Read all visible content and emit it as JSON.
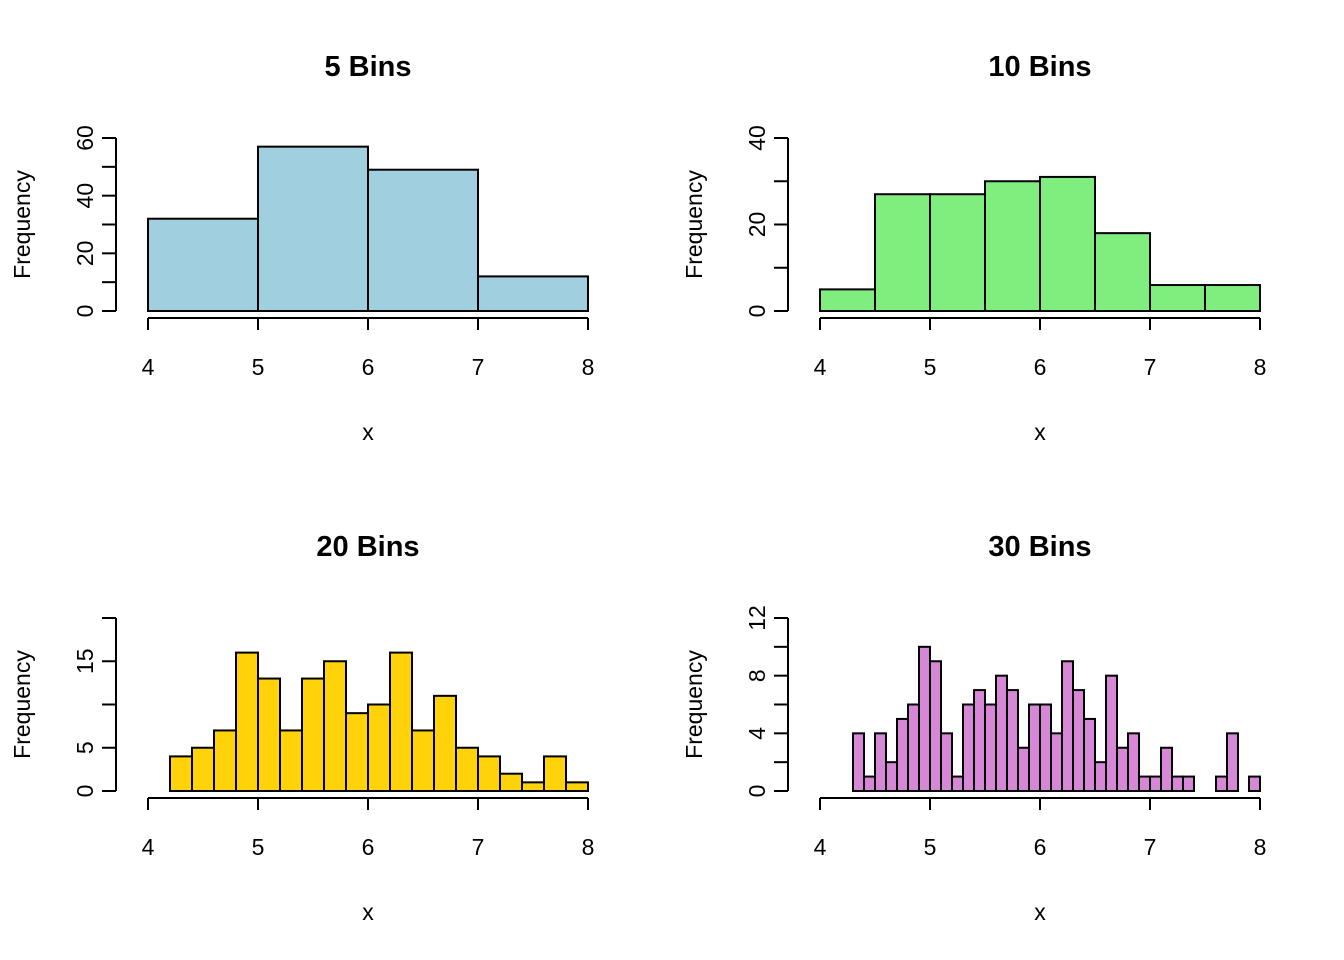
{
  "chart_data": [
    {
      "type": "bar",
      "title": "5 Bins",
      "xlabel": "x",
      "ylabel": "Frequency",
      "color": "#A0CFE0",
      "xlim": [
        4,
        8
      ],
      "ylim": [
        0,
        60
      ],
      "x_ticks": [
        4,
        5,
        6,
        7,
        8
      ],
      "y_ticks": [
        0,
        20,
        40,
        60
      ],
      "y_minor_ticks": [
        10,
        30,
        50
      ],
      "bin_start": 4.0,
      "bin_width": 1.0,
      "values": [
        32,
        57,
        49,
        12
      ]
    },
    {
      "type": "bar",
      "title": "10 Bins",
      "xlabel": "x",
      "ylabel": "Frequency",
      "color": "#80EE7E",
      "xlim": [
        4,
        8
      ],
      "ylim": [
        0,
        40
      ],
      "x_ticks": [
        4,
        5,
        6,
        7,
        8
      ],
      "y_ticks": [
        0,
        20,
        40
      ],
      "y_minor_ticks": [
        10,
        30
      ],
      "bin_start": 4.0,
      "bin_width": 0.5,
      "values": [
        5,
        27,
        27,
        30,
        31,
        18,
        6,
        6
      ]
    },
    {
      "type": "bar",
      "title": "20 Bins",
      "xlabel": "x",
      "ylabel": "Frequency",
      "color": "#FFD20A",
      "xlim": [
        4,
        8
      ],
      "ylim": [
        0,
        20
      ],
      "x_ticks": [
        4,
        5,
        6,
        7,
        8
      ],
      "y_ticks": [
        0,
        5,
        15
      ],
      "y_minor_ticks": [
        10,
        20
      ],
      "bin_start": 4.2,
      "bin_width": 0.2,
      "values": [
        4,
        5,
        7,
        16,
        13,
        7,
        13,
        15,
        9,
        10,
        16,
        7,
        11,
        5,
        4,
        2,
        1,
        4,
        1
      ]
    },
    {
      "type": "bar",
      "title": "30 Bins",
      "xlabel": "x",
      "ylabel": "Frequency",
      "color": "#D687D6",
      "xlim": [
        4,
        8
      ],
      "ylim": [
        0,
        12
      ],
      "x_ticks": [
        4,
        5,
        6,
        7,
        8
      ],
      "y_ticks": [
        0,
        4,
        8,
        12
      ],
      "y_minor_ticks": [
        2,
        6,
        10
      ],
      "bin_start": 4.3,
      "bin_width": 0.1,
      "values": [
        4,
        1,
        4,
        2,
        5,
        6,
        10,
        9,
        4,
        1,
        6,
        7,
        6,
        8,
        7,
        3,
        6,
        6,
        4,
        9,
        7,
        5,
        2,
        8,
        3,
        4,
        1,
        1,
        3,
        1,
        1,
        0,
        0,
        1,
        4,
        0,
        1
      ]
    }
  ]
}
